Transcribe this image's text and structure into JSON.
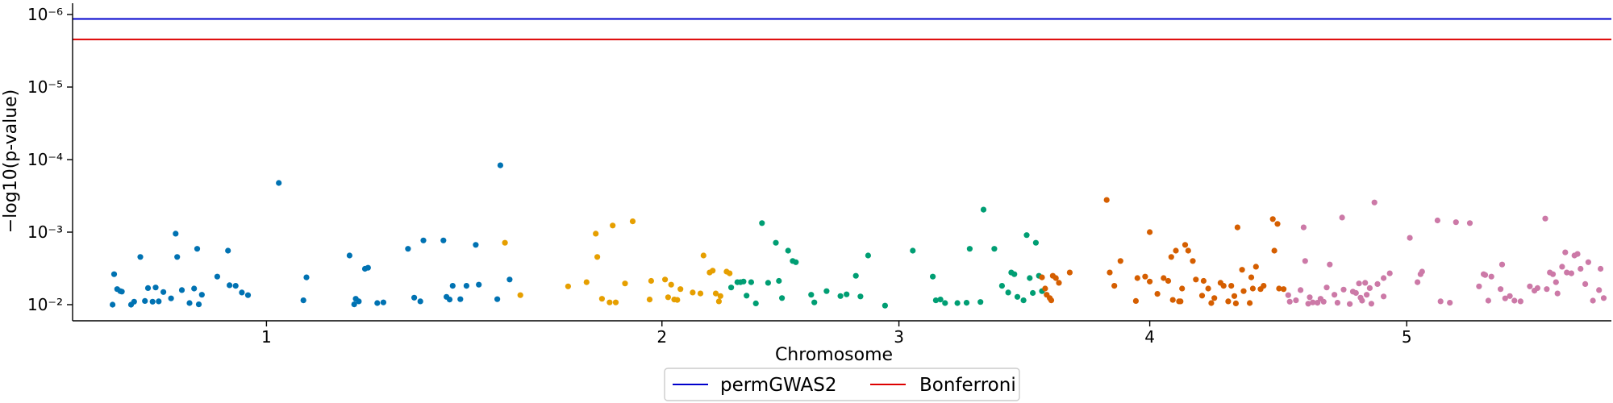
{
  "chart_data": {
    "type": "scatter",
    "title": "",
    "xlabel": "Chromosome",
    "ylabel": "−log10(p-value)",
    "y_scale": "log",
    "y_inverted": true,
    "y_ticks": [
      {
        "value": 1e-06,
        "label": "10⁻⁶"
      },
      {
        "value": 1e-05,
        "label": "10⁻⁵"
      },
      {
        "value": 0.0001,
        "label": "10⁻⁴"
      },
      {
        "value": 0.001,
        "label": "10⁻³"
      },
      {
        "value": 0.01,
        "label": "10⁻²"
      }
    ],
    "x_ticks": [
      {
        "label": "1",
        "pos": 0.126
      },
      {
        "label": "2",
        "pos": 0.383
      },
      {
        "label": "3",
        "pos": 0.537
      },
      {
        "label": "4",
        "pos": 0.7
      },
      {
        "label": "5",
        "pos": 0.867
      }
    ],
    "xlim": [
      0,
      1
    ],
    "grid": false,
    "legend": {
      "placement": "bottom-center",
      "entries": [
        "permGWAS2",
        "Bonferroni"
      ]
    },
    "threshold_lines": [
      {
        "name": "permGWAS2",
        "value": 1.15e-06,
        "color": "#0000cc"
      },
      {
        "name": "Bonferroni",
        "value": 2.2e-06,
        "color": "#dd0000"
      }
    ],
    "colors": {
      "chr1": "#0072b2",
      "chr2": "#e69f00",
      "chr3": "#009e73",
      "chr4": "#d55e00",
      "chr5": "#cc79a7"
    },
    "series": [
      {
        "chromosome": "1",
        "color": "#0072b2",
        "points": [
          [
            0.026,
            0.01
          ],
          [
            0.027,
            0.0038
          ],
          [
            0.029,
            0.0061
          ],
          [
            0.031,
            0.0065
          ],
          [
            0.032,
            0.0066
          ],
          [
            0.038,
            0.01
          ],
          [
            0.04,
            0.0091
          ],
          [
            0.044,
            0.0022
          ],
          [
            0.047,
            0.0089
          ],
          [
            0.049,
            0.0059
          ],
          [
            0.052,
            0.0091
          ],
          [
            0.054,
            0.0058
          ],
          [
            0.056,
            0.009
          ],
          [
            0.059,
            0.0067
          ],
          [
            0.064,
            0.0082
          ],
          [
            0.067,
            0.00105
          ],
          [
            0.068,
            0.0022
          ],
          [
            0.071,
            0.0063
          ],
          [
            0.076,
            0.0095
          ],
          [
            0.079,
            0.006
          ],
          [
            0.081,
            0.0017
          ],
          [
            0.082,
            0.0099
          ],
          [
            0.084,
            0.0073
          ],
          [
            0.094,
            0.0041
          ],
          [
            0.101,
            0.0018
          ],
          [
            0.102,
            0.0054
          ],
          [
            0.106,
            0.0055
          ],
          [
            0.11,
            0.0068
          ],
          [
            0.114,
            0.0074
          ],
          [
            0.134,
            0.00021
          ],
          [
            0.15,
            0.0087
          ],
          [
            0.152,
            0.0042
          ],
          [
            0.18,
            0.0021
          ],
          [
            0.183,
            0.0099
          ],
          [
            0.184,
            0.0083
          ],
          [
            0.186,
            0.009
          ],
          [
            0.19,
            0.0032
          ],
          [
            0.192,
            0.0031
          ],
          [
            0.198,
            0.0095
          ],
          [
            0.202,
            0.0093
          ],
          [
            0.218,
            0.0017
          ],
          [
            0.222,
            0.008
          ],
          [
            0.226,
            0.009
          ],
          [
            0.228,
            0.0013
          ],
          [
            0.241,
            0.0013
          ],
          [
            0.243,
            0.0078
          ],
          [
            0.245,
            0.0085
          ],
          [
            0.247,
            0.0055
          ],
          [
            0.252,
            0.0084
          ],
          [
            0.256,
            0.0055
          ],
          [
            0.262,
            0.0015
          ],
          [
            0.264,
            0.0053
          ],
          [
            0.276,
            0.0084
          ],
          [
            0.278,
            0.00012
          ],
          [
            0.284,
            0.0045
          ]
        ]
      },
      {
        "chromosome": "2",
        "color": "#e69f00",
        "points": [
          [
            0.281,
            0.0014
          ],
          [
            0.291,
            0.0074
          ],
          [
            0.322,
            0.0056
          ],
          [
            0.334,
            0.0049
          ],
          [
            0.34,
            0.00105
          ],
          [
            0.341,
            0.0022
          ],
          [
            0.344,
            0.0083
          ],
          [
            0.349,
            0.0093
          ],
          [
            0.351,
            0.00081
          ],
          [
            0.353,
            0.0093
          ],
          [
            0.359,
            0.0051
          ],
          [
            0.364,
            0.00071
          ],
          [
            0.375,
            0.0085
          ],
          [
            0.376,
            0.0047
          ],
          [
            0.385,
            0.0045
          ],
          [
            0.387,
            0.0079
          ],
          [
            0.389,
            0.0053
          ],
          [
            0.391,
            0.0085
          ],
          [
            0.393,
            0.0086
          ],
          [
            0.395,
            0.0061
          ],
          [
            0.403,
            0.0068
          ],
          [
            0.408,
            0.007
          ],
          [
            0.41,
            0.0021
          ],
          [
            0.414,
            0.0036
          ],
          [
            0.416,
            0.0034
          ],
          [
            0.418,
            0.007
          ],
          [
            0.42,
            0.009
          ],
          [
            0.421,
            0.0076
          ],
          [
            0.425,
            0.0035
          ],
          [
            0.427,
            0.0037
          ]
        ]
      },
      {
        "chromosome": "3",
        "color": "#009e73",
        "points": [
          [
            0.428,
            0.0058
          ],
          [
            0.432,
            0.0049
          ],
          [
            0.434,
            0.0049
          ],
          [
            0.436,
            0.0048
          ],
          [
            0.438,
            0.0075
          ],
          [
            0.441,
            0.0049
          ],
          [
            0.444,
            0.0096
          ],
          [
            0.448,
            0.00075
          ],
          [
            0.452,
            0.005
          ],
          [
            0.457,
            0.0014
          ],
          [
            0.459,
            0.0047
          ],
          [
            0.461,
            0.0081
          ],
          [
            0.465,
            0.0018
          ],
          [
            0.468,
            0.0025
          ],
          [
            0.47,
            0.0026
          ],
          [
            0.48,
            0.0073
          ],
          [
            0.482,
            0.0093
          ],
          [
            0.49,
            0.0065
          ],
          [
            0.499,
            0.0076
          ],
          [
            0.503,
            0.0072
          ],
          [
            0.509,
            0.004
          ],
          [
            0.512,
            0.0077
          ],
          [
            0.517,
            0.0021
          ],
          [
            0.528,
            0.0103
          ],
          [
            0.546,
            0.0018
          ],
          [
            0.559,
            0.0041
          ],
          [
            0.561,
            0.0087
          ],
          [
            0.564,
            0.0085
          ],
          [
            0.567,
            0.0095
          ],
          [
            0.575,
            0.0095
          ],
          [
            0.581,
            0.0094
          ],
          [
            0.583,
            0.0017
          ],
          [
            0.59,
            0.0092
          ],
          [
            0.592,
            0.00049
          ],
          [
            0.599,
            0.0017
          ],
          [
            0.604,
            0.0055
          ],
          [
            0.608,
            0.0068
          ],
          [
            0.61,
            0.0036
          ],
          [
            0.612,
            0.0038
          ],
          [
            0.614,
            0.0078
          ],
          [
            0.618,
            0.0087
          ],
          [
            0.62,
            0.0011
          ],
          [
            0.622,
            0.0043
          ],
          [
            0.624,
            0.0069
          ],
          [
            0.626,
            0.0014
          ],
          [
            0.628,
            0.004
          ],
          [
            0.63,
            0.0065
          ]
        ]
      },
      {
        "chromosome": "4",
        "color": "#d55e00",
        "points": [
          [
            0.63,
            0.0042
          ],
          [
            0.632,
            0.006
          ],
          [
            0.633,
            0.0073
          ],
          [
            0.635,
            0.0081
          ],
          [
            0.636,
            0.0087
          ],
          [
            0.637,
            0.004
          ],
          [
            0.639,
            0.0043
          ],
          [
            0.641,
            0.005
          ],
          [
            0.648,
            0.0036
          ],
          [
            0.672,
            0.00036
          ],
          [
            0.674,
            0.0036
          ],
          [
            0.677,
            0.0055
          ],
          [
            0.681,
            0.0025
          ],
          [
            0.691,
            0.0089
          ],
          [
            0.692,
            0.0043
          ],
          [
            0.697,
            0.0041
          ],
          [
            0.7,
            0.0048
          ],
          [
            0.7,
            0.001
          ],
          [
            0.705,
            0.0071
          ],
          [
            0.709,
            0.0043
          ],
          [
            0.712,
            0.0047
          ],
          [
            0.714,
            0.0022
          ],
          [
            0.715,
            0.0086
          ],
          [
            0.717,
            0.0018
          ],
          [
            0.719,
            0.009
          ],
          [
            0.72,
            0.009
          ],
          [
            0.721,
            0.006
          ],
          [
            0.723,
            0.0015
          ],
          [
            0.725,
            0.0018
          ],
          [
            0.728,
            0.0025
          ],
          [
            0.73,
            0.0045
          ],
          [
            0.734,
            0.0075
          ],
          [
            0.735,
            0.0047
          ],
          [
            0.738,
            0.006
          ],
          [
            0.74,
            0.0095
          ],
          [
            0.742,
            0.0081
          ],
          [
            0.746,
            0.005
          ],
          [
            0.748,
            0.0055
          ],
          [
            0.751,
            0.009
          ],
          [
            0.753,
            0.0055
          ],
          [
            0.755,
            0.0076
          ],
          [
            0.756,
            0.0096
          ],
          [
            0.757,
            0.00086
          ],
          [
            0.76,
            0.0033
          ],
          [
            0.761,
            0.0065
          ],
          [
            0.765,
            0.0095
          ],
          [
            0.766,
            0.0042
          ],
          [
            0.767,
            0.006
          ],
          [
            0.769,
            0.003
          ],
          [
            0.772,
            0.0061
          ],
          [
            0.774,
            0.0055
          ],
          [
            0.78,
            0.00066
          ],
          [
            0.781,
            0.0018
          ],
          [
            0.783,
            0.00077
          ],
          [
            0.784,
            0.006
          ],
          [
            0.787,
            0.0061
          ]
        ]
      },
      {
        "chromosome": "5",
        "color": "#cc79a7",
        "points": [
          [
            0.79,
            0.0074
          ],
          [
            0.791,
            0.0091
          ],
          [
            0.795,
            0.0087
          ],
          [
            0.798,
            0.0063
          ],
          [
            0.8,
            0.00086
          ],
          [
            0.801,
            0.0025
          ],
          [
            0.803,
            0.0097
          ],
          [
            0.804,
            0.0079
          ],
          [
            0.806,
            0.0093
          ],
          [
            0.809,
            0.0094
          ],
          [
            0.811,
            0.0083
          ],
          [
            0.813,
            0.0091
          ],
          [
            0.815,
            0.0058
          ],
          [
            0.817,
            0.0028
          ],
          [
            0.82,
            0.0073
          ],
          [
            0.822,
            0.0094
          ],
          [
            0.825,
            0.00063
          ],
          [
            0.826,
            0.0062
          ],
          [
            0.83,
            0.0098
          ],
          [
            0.832,
            0.0066
          ],
          [
            0.834,
            0.0069
          ],
          [
            0.836,
            0.0051
          ],
          [
            0.837,
            0.008
          ],
          [
            0.838,
            0.0088
          ],
          [
            0.84,
            0.005
          ],
          [
            0.841,
            0.0073
          ],
          [
            0.843,
            0.0059
          ],
          [
            0.844,
            0.0097
          ],
          [
            0.846,
            0.00039
          ],
          [
            0.848,
            0.0052
          ],
          [
            0.852,
            0.0077
          ],
          [
            0.852,
            0.0043
          ],
          [
            0.856,
            0.0037
          ],
          [
            0.869,
            0.0012
          ],
          [
            0.874,
            0.0049
          ],
          [
            0.876,
            0.0038
          ],
          [
            0.877,
            0.0035
          ],
          [
            0.887,
            0.00069
          ],
          [
            0.889,
            0.009
          ],
          [
            0.895,
            0.0094
          ],
          [
            0.899,
            0.00073
          ],
          [
            0.908,
            0.00075
          ],
          [
            0.914,
            0.0056
          ],
          [
            0.917,
            0.0038
          ],
          [
            0.918,
            0.0039
          ],
          [
            0.92,
            0.0088
          ],
          [
            0.922,
            0.0041
          ],
          [
            0.928,
            0.0061
          ],
          [
            0.929,
            0.0028
          ],
          [
            0.931,
            0.0082
          ],
          [
            0.934,
            0.0076
          ],
          [
            0.937,
            0.0088
          ],
          [
            0.941,
            0.009
          ],
          [
            0.947,
            0.0056
          ],
          [
            0.95,
            0.0064
          ],
          [
            0.952,
            0.0059
          ],
          [
            0.957,
            0.00065
          ],
          [
            0.958,
            0.0061
          ],
          [
            0.96,
            0.0036
          ],
          [
            0.962,
            0.0038
          ],
          [
            0.964,
            0.0049
          ],
          [
            0.965,
            0.007
          ],
          [
            0.968,
            0.003
          ],
          [
            0.97,
            0.0019
          ],
          [
            0.971,
            0.0036
          ],
          [
            0.974,
            0.0037
          ],
          [
            0.976,
            0.0021
          ],
          [
            0.978,
            0.002
          ],
          [
            0.98,
            0.0032
          ],
          [
            0.983,
            0.0052
          ],
          [
            0.985,
            0.0026
          ],
          [
            0.988,
            0.0088
          ],
          [
            0.992,
            0.0063
          ],
          [
            0.993,
            0.0032
          ],
          [
            0.995,
            0.0081
          ]
        ]
      }
    ]
  }
}
